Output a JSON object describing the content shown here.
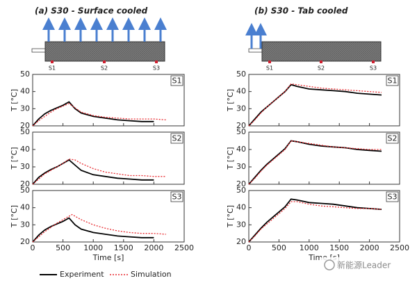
{
  "headers": [
    {
      "title": "(a) S30 - Surface cooled",
      "sensors": [
        "S1",
        "S2",
        "S3"
      ]
    },
    {
      "title": "(b) S30 - Tab cooled",
      "sensors": [
        "S1",
        "S2",
        "S3"
      ]
    }
  ],
  "watermark": "新能源Leader",
  "chart_data": [
    {
      "type": "line",
      "label": "S1",
      "ylabel": "T [°C]",
      "xlim": [
        0,
        2500
      ],
      "ylim": [
        20,
        50
      ],
      "xticks": [
        0,
        500,
        1000,
        1500,
        2000,
        2500
      ],
      "yticks": [
        20,
        30,
        40,
        50
      ],
      "series": [
        {
          "name": "Experiment",
          "color": "#000000",
          "x": [
            0,
            100,
            200,
            300,
            400,
            500,
            600,
            700,
            800,
            1000,
            1200,
            1400,
            1600,
            1800,
            2000
          ],
          "values": [
            20,
            24,
            27,
            29,
            30.5,
            32,
            34,
            30,
            27.5,
            25.5,
            24.5,
            23.5,
            23,
            22.5,
            22.5
          ]
        },
        {
          "name": "Simulation",
          "color": "#e8292e",
          "x": [
            0,
            100,
            200,
            300,
            400,
            500,
            600,
            700,
            800,
            1000,
            1200,
            1400,
            1600,
            1800,
            2000,
            2200
          ],
          "values": [
            20,
            23,
            25.5,
            28,
            30,
            31.5,
            33,
            30.5,
            28,
            26,
            25,
            24.5,
            24,
            24,
            24,
            23.5
          ]
        }
      ]
    },
    {
      "type": "line",
      "label": "S2",
      "ylabel": "T [°C]",
      "xlim": [
        0,
        2500
      ],
      "ylim": [
        20,
        50
      ],
      "xticks": [
        0,
        500,
        1000,
        1500,
        2000,
        2500
      ],
      "yticks": [
        20,
        30,
        40,
        50
      ],
      "series": [
        {
          "name": "Experiment",
          "color": "#000000",
          "x": [
            0,
            100,
            200,
            300,
            400,
            500,
            600,
            700,
            800,
            1000,
            1200,
            1400,
            1600,
            1800,
            2000
          ],
          "values": [
            20,
            24,
            26.5,
            28.5,
            30,
            32,
            34,
            31,
            28,
            25.5,
            24.5,
            23.5,
            23,
            22.5,
            22.5
          ]
        },
        {
          "name": "Simulation",
          "color": "#e8292e",
          "x": [
            0,
            100,
            200,
            300,
            400,
            500,
            600,
            700,
            800,
            1000,
            1200,
            1400,
            1600,
            1800,
            2000,
            2200
          ],
          "values": [
            20,
            23,
            26,
            28,
            30,
            32,
            34.5,
            34,
            32,
            29,
            27,
            26,
            25,
            25,
            24.5,
            24.5
          ]
        }
      ]
    },
    {
      "type": "line",
      "label": "S3",
      "ylabel": "T [°C]",
      "xlabel": "Time [s]",
      "xlim": [
        0,
        2500
      ],
      "ylim": [
        20,
        50
      ],
      "xticks": [
        0,
        500,
        1000,
        1500,
        2000,
        2500
      ],
      "yticks": [
        20,
        30,
        40,
        50
      ],
      "series": [
        {
          "name": "Experiment",
          "color": "#000000",
          "x": [
            0,
            100,
            200,
            300,
            400,
            500,
            600,
            700,
            800,
            1000,
            1200,
            1400,
            1600,
            1800,
            2000
          ],
          "values": [
            20,
            24,
            27,
            29,
            30.5,
            32,
            34,
            30,
            27.5,
            25.5,
            24.5,
            23.5,
            23,
            22.5,
            22.5
          ]
        },
        {
          "name": "Simulation",
          "color": "#e8292e",
          "x": [
            0,
            100,
            200,
            300,
            400,
            500,
            600,
            650,
            700,
            800,
            1000,
            1200,
            1400,
            1600,
            1800,
            2000,
            2200
          ],
          "values": [
            20,
            23,
            26,
            28.5,
            31,
            33,
            35,
            36,
            35,
            33,
            30,
            28,
            26.5,
            25.5,
            25,
            25,
            24.5
          ]
        }
      ]
    },
    {
      "type": "line",
      "label": "S1",
      "ylabel": "T [°C]",
      "xlim": [
        0,
        2500
      ],
      "ylim": [
        20,
        50
      ],
      "xticks": [
        0,
        500,
        1000,
        1500,
        2000,
        2500
      ],
      "yticks": [
        20,
        30,
        40,
        50
      ],
      "series": [
        {
          "name": "Experiment",
          "color": "#000000",
          "x": [
            0,
            100,
            200,
            300,
            400,
            500,
            600,
            700,
            800,
            1000,
            1200,
            1400,
            1600,
            1800,
            2000,
            2200
          ],
          "values": [
            20,
            24,
            28,
            31,
            34,
            37,
            40,
            44,
            43,
            41.5,
            41,
            40.5,
            40,
            39,
            38.5,
            38
          ]
        },
        {
          "name": "Simulation",
          "color": "#e8292e",
          "x": [
            0,
            100,
            200,
            300,
            400,
            500,
            600,
            700,
            800,
            1000,
            1200,
            1400,
            1600,
            1800,
            2000,
            2200
          ],
          "values": [
            20,
            23.5,
            27.5,
            31,
            34,
            37,
            40,
            44.5,
            44,
            43,
            42,
            41.5,
            41,
            40.5,
            40,
            39.5
          ]
        }
      ]
    },
    {
      "type": "line",
      "label": "S2",
      "ylabel": "T [°C]",
      "xlim": [
        0,
        2500
      ],
      "ylim": [
        20,
        50
      ],
      "xticks": [
        0,
        500,
        1000,
        1500,
        2000,
        2500
      ],
      "yticks": [
        20,
        30,
        40,
        50
      ],
      "series": [
        {
          "name": "Experiment",
          "color": "#000000",
          "x": [
            0,
            100,
            200,
            300,
            400,
            500,
            600,
            700,
            800,
            1000,
            1200,
            1400,
            1600,
            1800,
            2000,
            2200
          ],
          "values": [
            20,
            24,
            28,
            31.5,
            34.5,
            37.5,
            40.5,
            45,
            44.5,
            43,
            42,
            41.5,
            41,
            40,
            39.5,
            39
          ]
        },
        {
          "name": "Simulation",
          "color": "#e8292e",
          "x": [
            0,
            100,
            200,
            300,
            400,
            500,
            600,
            700,
            800,
            1000,
            1200,
            1400,
            1600,
            1800,
            2000,
            2200
          ],
          "values": [
            20,
            23.5,
            27.5,
            31,
            34,
            37,
            40,
            45,
            44.5,
            43.5,
            42.5,
            41.5,
            41,
            40.5,
            40,
            40
          ]
        }
      ]
    },
    {
      "type": "line",
      "label": "S3",
      "ylabel": "T [°C]",
      "xlabel": "Time [s]",
      "xlim": [
        0,
        2500
      ],
      "ylim": [
        20,
        50
      ],
      "xticks": [
        0,
        500,
        1000,
        1500,
        2000,
        2500
      ],
      "yticks": [
        20,
        30,
        40,
        50
      ],
      "series": [
        {
          "name": "Experiment",
          "color": "#000000",
          "x": [
            0,
            100,
            200,
            300,
            400,
            500,
            600,
            700,
            800,
            1000,
            1200,
            1400,
            1600,
            1800,
            2000,
            2200
          ],
          "values": [
            20,
            24,
            28,
            31.5,
            34.5,
            37.5,
            40.5,
            45,
            44.5,
            43,
            42.5,
            42,
            41,
            40,
            39.5,
            39
          ]
        },
        {
          "name": "Simulation",
          "color": "#e8292e",
          "x": [
            0,
            100,
            200,
            300,
            400,
            500,
            600,
            700,
            800,
            1000,
            1200,
            1400,
            1600,
            1800,
            2000,
            2200
          ],
          "values": [
            20,
            23.5,
            27.5,
            30.5,
            33.5,
            36.5,
            39.5,
            43.5,
            43.5,
            42,
            41,
            40.5,
            40,
            39.5,
            39.5,
            39
          ]
        }
      ]
    }
  ]
}
